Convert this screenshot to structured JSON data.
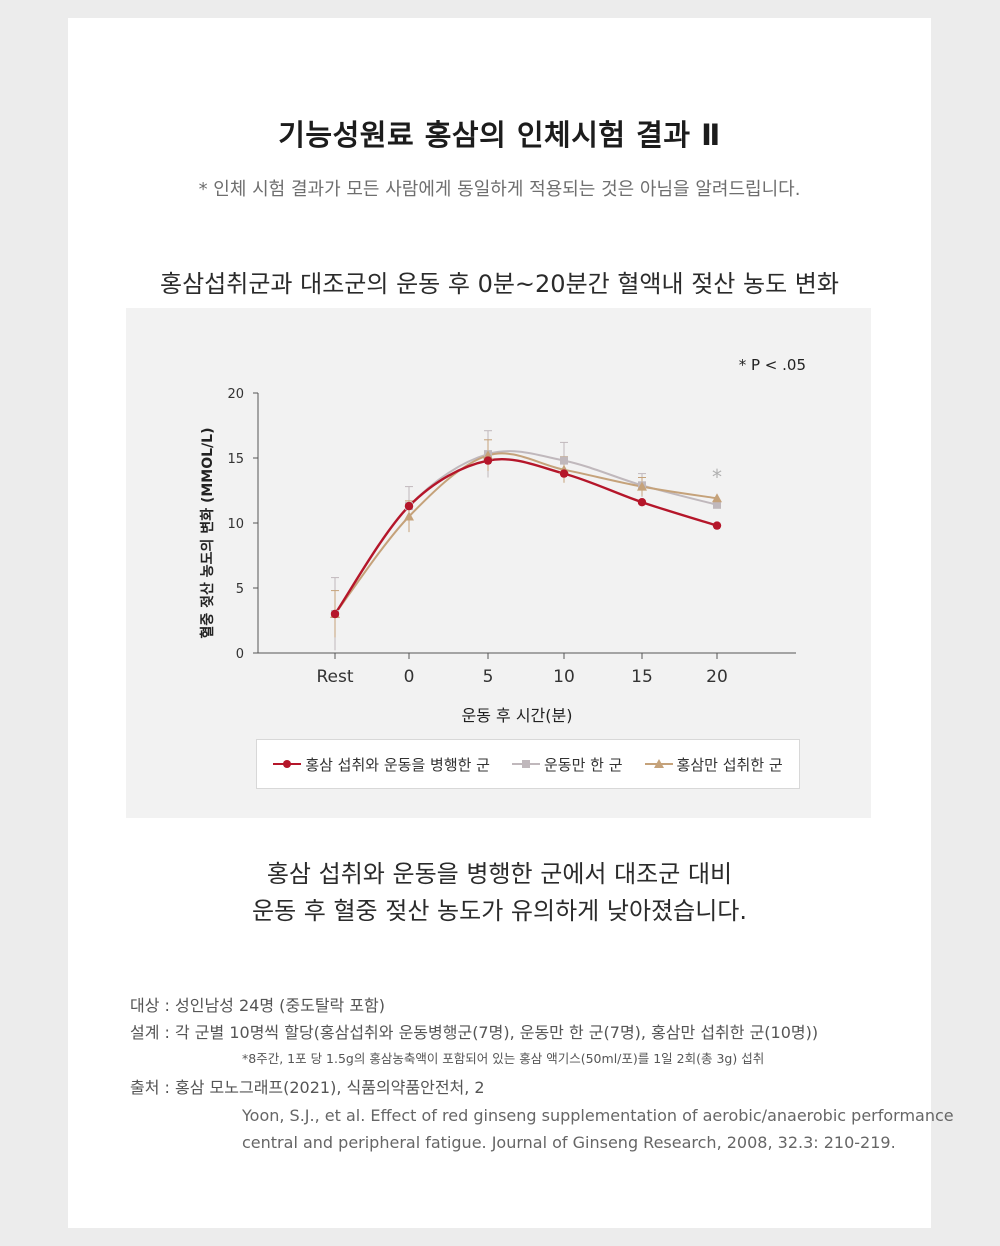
{
  "header": {
    "title": "기능성원료 홍삼의 인체시험 결과 Ⅱ",
    "disclaimer": "* 인체 시험 결과가 모든 사람에게 동일하게 적용되는 것은 아님을 알려드립니다."
  },
  "chart_heading": "홍삼섭취군과 대조군의 운동 후 0분~20분간 혈액내 젖산 농도 변화",
  "chart_data": {
    "type": "line",
    "x_categories": [
      "Rest",
      "0",
      "5",
      "10",
      "15",
      "20"
    ],
    "xlabel": "운동 후 시간(분)",
    "ylabel": "혈중 젖산 농도의 변화 (MMOL/L)",
    "ylim": [
      0,
      20
    ],
    "yticks": [
      "0",
      "5",
      "10",
      "15",
      "20"
    ],
    "significance_note": "* P < .05",
    "significance_marker": "*",
    "grid": false,
    "legend_position": "bottom",
    "series": [
      {
        "name": "홍삼 섭취와 운동을 병행한 군",
        "marker": "circle",
        "color": "#b5162a",
        "values": [
          3.0,
          11.3,
          14.8,
          13.8,
          11.6,
          9.8
        ],
        "error": [
          0,
          0,
          0,
          0,
          0,
          0
        ]
      },
      {
        "name": "운동만 한 군",
        "marker": "square",
        "color": "#c0b8bc",
        "values": [
          3.0,
          11.3,
          15.3,
          14.8,
          12.9,
          11.4
        ],
        "error": [
          2.8,
          1.5,
          1.8,
          1.4,
          0.9,
          0
        ]
      },
      {
        "name": "홍삼만 섭취한 군",
        "marker": "triangle",
        "color": "#c5a27a",
        "values": [
          3.0,
          10.5,
          15.2,
          14.1,
          12.8,
          11.9
        ],
        "error": [
          1.8,
          1.2,
          1.2,
          1.0,
          0.7,
          0
        ]
      }
    ]
  },
  "conclusion": {
    "line1": "홍삼 섭취와 운동을 병행한 군에서 대조군 대비",
    "line2": "운동 후 혈중 젖산 농도가 유의하게 낮아졌습니다."
  },
  "notes": {
    "subjects": "대상 : 성인남성 24명 (중도탈락 포함)",
    "design": "설계 : 각 군별 10명씩 할당(홍삼섭취와 운동병행군(7명), 운동만 한 군(7명), 홍삼만 섭취한 군(10명))",
    "design_detail": "*8주간, 1포 당 1.5g의 홍삼농축액이 포함되어 있는 홍삼 액기스(50ml/포)를 1일 2회(총 3g) 섭취",
    "source": "출처 : 홍삼 모노그래프(2021), 식품의약품안전처, 2",
    "reference_line1": "Yoon, S.J., et al. Effect of red ginseng supplementation of aerobic/anaerobic performance",
    "reference_line2": "central and peripheral fatigue. Journal of Ginseng Research, 2008, 32.3: 210-219."
  }
}
